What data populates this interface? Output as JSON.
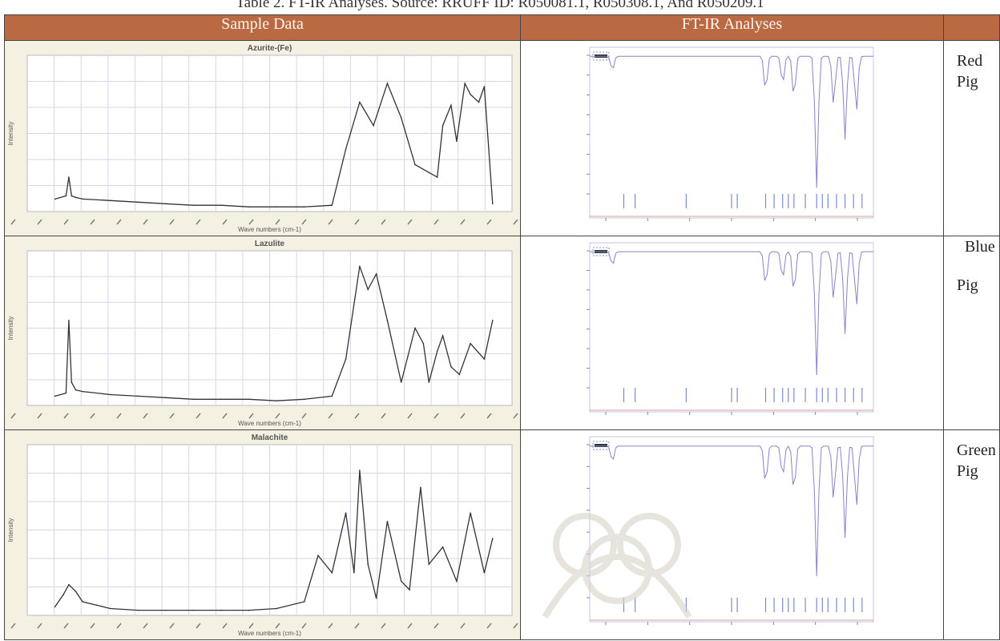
{
  "caption": "Table 2. FT-IR Analyses. Source: RRUFF ID: R050081.1, R050308.1, And R050209.1",
  "headers": [
    "Sample Data",
    "FT-IR Analyses",
    ""
  ],
  "rows": [
    {
      "sample_title": "Azurite-(Fe)",
      "sample_xlabel": "Wave numbers (cm-1)",
      "sample_ylabel": "Intensity",
      "pigment_line1": "Red",
      "pigment_line2": "Pig"
    },
    {
      "sample_title": "Lazulite",
      "sample_xlabel": "Wave numbers (cm-1)",
      "sample_ylabel": "Intensity",
      "pigment_line1": "Blue",
      "pigment_line2": "Pig"
    },
    {
      "sample_title": "Malachite",
      "sample_xlabel": "Wave numbers (cm-1)",
      "sample_ylabel": "Intensity",
      "pigment_line1": "Green",
      "pigment_line2": "Pig"
    }
  ],
  "colors": {
    "header_bg": "#b96a43",
    "sample_bg": "#f4f1e2",
    "plot_bg": "#ffffff",
    "grid": "#d6d6e6",
    "trace": "#333333",
    "spectrum": "#8b80c8"
  },
  "chart_data": [
    {
      "type": "line",
      "title": "Azurite-(Fe)",
      "xlabel": "Wave numbers (cm-1)",
      "ylabel": "Intensity",
      "x": [
        100,
        140,
        150,
        160,
        175,
        200,
        300,
        400,
        500,
        600,
        700,
        800,
        900,
        1000,
        1100,
        1150,
        1200,
        1250,
        1300,
        1350,
        1400,
        1450,
        1480,
        1500,
        1530,
        1550,
        1580,
        1600,
        1630,
        1650,
        1680
      ],
      "y": [
        8,
        10,
        22,
        10,
        9,
        8,
        7,
        6,
        5,
        4,
        4,
        3,
        3,
        3,
        4,
        40,
        70,
        55,
        82,
        60,
        30,
        25,
        22,
        55,
        68,
        45,
        82,
        75,
        70,
        80,
        5
      ]
    },
    {
      "type": "line",
      "title": "Lazulite",
      "xlabel": "Wave numbers (cm-1)",
      "ylabel": "Intensity",
      "x": [
        100,
        140,
        150,
        160,
        175,
        200,
        300,
        400,
        500,
        600,
        700,
        800,
        900,
        1000,
        1100,
        1150,
        1200,
        1230,
        1260,
        1300,
        1350,
        1400,
        1430,
        1450,
        1480,
        1500,
        1530,
        1560,
        1600,
        1650,
        1680
      ],
      "y": [
        6,
        8,
        55,
        15,
        10,
        9,
        7,
        6,
        5,
        4,
        4,
        4,
        3,
        4,
        6,
        30,
        90,
        75,
        85,
        55,
        15,
        50,
        40,
        15,
        35,
        45,
        25,
        20,
        40,
        30,
        55
      ]
    },
    {
      "type": "line",
      "title": "Malachite",
      "xlabel": "Wave numbers (cm-1)",
      "ylabel": "Intensity",
      "x": [
        100,
        130,
        150,
        175,
        200,
        250,
        300,
        400,
        500,
        600,
        700,
        800,
        900,
        1000,
        1050,
        1100,
        1150,
        1180,
        1200,
        1230,
        1260,
        1300,
        1350,
        1380,
        1420,
        1450,
        1500,
        1550,
        1600,
        1650,
        1680
      ],
      "y": [
        5,
        12,
        18,
        14,
        8,
        6,
        4,
        3,
        3,
        3,
        3,
        3,
        4,
        8,
        35,
        25,
        60,
        25,
        85,
        30,
        10,
        55,
        20,
        15,
        75,
        30,
        40,
        20,
        60,
        25,
        45
      ]
    }
  ]
}
